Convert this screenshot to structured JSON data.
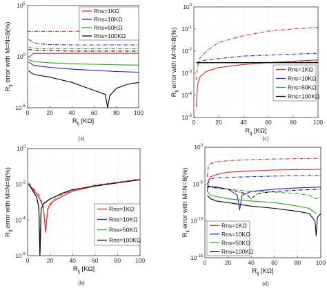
{
  "panels": [
    {
      "caption": "(a)",
      "xlabel_main": "R",
      "xlabel_sub": "ij",
      "xlabel_unit": " [KΩ]",
      "ylabel_main": "R",
      "ylabel_sub": "ij",
      "ylabel_rest": " error with M=N=8(%)",
      "legend": [
        "Rns=1KΩ",
        "Rns=10KΩ",
        "Rns=50KΩ",
        "Rns=100KΩ"
      ],
      "xticks": [
        "0",
        "20",
        "40",
        "60",
        "80",
        "100"
      ],
      "yticks": [
        {
          "b": "10",
          "e": "5"
        },
        {
          "b": "10",
          "e": "0"
        },
        {
          "b": "10",
          "e": "-5"
        }
      ]
    },
    {
      "caption": "(c)",
      "xlabel_main": "R",
      "xlabel_sub": "ij",
      "xlabel_unit": " [KΩ]",
      "ylabel_main": "R",
      "ylabel_sub": "ij",
      "ylabel_rest": " error with M=N=8(%)",
      "legend": [
        "Rns=1KΩ",
        "Rns=10KΩ",
        "Rns=50KΩ",
        "Rns=100KΩ"
      ],
      "xticks": [
        "0",
        "20",
        "40",
        "60",
        "80",
        "100"
      ],
      "yticks": [
        {
          "b": "10",
          "e": "0"
        },
        {
          "b": "10",
          "e": "-1"
        },
        {
          "b": "10",
          "e": "-2"
        },
        {
          "b": "10",
          "e": "-3"
        },
        {
          "b": "10",
          "e": "-4"
        },
        {
          "b": "10",
          "e": "-5"
        }
      ]
    },
    {
      "caption": "(b)",
      "xlabel_main": "R",
      "xlabel_sub": "ij",
      "xlabel_unit": " [KΩ]",
      "ylabel_main": "R",
      "ylabel_sub": "ij",
      "ylabel_rest": " error with M=N=8(%)",
      "legend": [
        "Rns=1KΩ",
        "Rns=10KΩ",
        "Rns=50KΩ",
        "Rns=100KΩ"
      ],
      "xticks": [
        "0",
        "20",
        "40",
        "60",
        "80",
        "100"
      ],
      "yticks": [
        {
          "b": "10",
          "e": "0"
        },
        {
          "b": "10",
          "e": "-2"
        },
        {
          "b": "10",
          "e": "-4"
        },
        {
          "b": "10",
          "e": "-6"
        }
      ]
    },
    {
      "caption": "(d)",
      "xlabel_main": "R",
      "xlabel_sub": "ij",
      "xlabel_unit": " [KΩ]",
      "ylabel_main": "R",
      "ylabel_sub": "ij",
      "ylabel_rest": " error with M=N=8(%)",
      "legend": [
        "Rns=1KΩ",
        "Rns=10KΩ",
        "Rns=50KΩ",
        "Rns=100KΩ"
      ],
      "xticks": [
        "0",
        "20",
        "40",
        "60",
        "80",
        "100"
      ],
      "yticks": [
        {
          "b": "10",
          "e": "0"
        },
        {
          "b": "10",
          "e": "-5"
        },
        {
          "b": "10",
          "e": "-10"
        },
        {
          "b": "10",
          "e": "-15"
        }
      ]
    }
  ],
  "chart_data": [
    {
      "panel": "(a)",
      "type": "line",
      "xscale": "linear",
      "yscale": "log",
      "xlim": [
        0,
        100
      ],
      "ylim_exp": [
        -5,
        5
      ],
      "grid": true,
      "legend_position": "top-right",
      "series": [
        {
          "name": "Rns=1KΩ",
          "color": "#d62728",
          "style": "solid",
          "x": [
            1,
            5,
            10,
            20,
            40,
            60,
            80,
            100
          ],
          "y": [
            0.8,
            2.0,
            2.1,
            2.1,
            2.1,
            2.1,
            2.1,
            2.1
          ]
        },
        {
          "name": "Rns=10KΩ",
          "color": "#1f1fbf",
          "style": "solid",
          "x": [
            1,
            5,
            10,
            20,
            40,
            60,
            80,
            100
          ],
          "y": [
            0.3,
            0.15,
            0.12,
            0.09,
            0.06,
            0.045,
            0.035,
            0.03
          ]
        },
        {
          "name": "Rns=50KΩ",
          "color": "#2ca02c",
          "style": "solid",
          "x": [
            1,
            5,
            10,
            20,
            40,
            60,
            80,
            100
          ],
          "y": [
            0.5,
            0.35,
            0.3,
            0.25,
            0.2,
            0.18,
            0.16,
            0.15
          ]
        },
        {
          "name": "Rns=100KΩ",
          "color": "#000000",
          "style": "solid",
          "x": [
            1,
            5,
            10,
            20,
            40,
            60,
            70,
            72,
            74,
            80,
            90,
            100
          ],
          "y": [
            0.04,
            0.02,
            0.015,
            0.01,
            0.003,
            0.0005,
            0.0002,
            1e-05,
            0.00015,
            0.0008,
            0.002,
            0.003
          ]
        },
        {
          "name": "Rns=1KΩ",
          "color": "#d62728",
          "style": "dashdot",
          "x": [
            0,
            100
          ],
          "y": [
            300,
            300
          ]
        },
        {
          "name": "Rns=10KΩ",
          "color": "#1f1fbf",
          "style": "dashdot",
          "x": [
            1,
            5,
            10,
            20,
            40,
            60,
            80,
            100
          ],
          "y": [
            50,
            25,
            18,
            15,
            14,
            14,
            14,
            14
          ]
        },
        {
          "name": "Rns=50KΩ",
          "color": "#2ca02c",
          "style": "dashdot",
          "x": [
            1,
            10,
            40,
            100
          ],
          "y": [
            8,
            6,
            6,
            6
          ]
        },
        {
          "name": "Rns=100KΩ",
          "color": "#000000",
          "style": "dashdot",
          "x": [
            1,
            10,
            40,
            100
          ],
          "y": [
            5,
            4,
            3.5,
            3.5
          ]
        }
      ]
    },
    {
      "panel": "(c)",
      "type": "line",
      "xscale": "linear",
      "yscale": "log",
      "xlim": [
        0,
        100
      ],
      "ylim_exp": [
        -5,
        0
      ],
      "grid": true,
      "legend_position": "bottom-right",
      "series": [
        {
          "name": "Rns=1KΩ",
          "color": "#d62728",
          "style": "solid",
          "x": [
            2,
            3,
            5,
            10,
            20,
            40,
            60,
            80,
            100
          ],
          "y": [
            3e-05,
            0.0003,
            0.0007,
            0.0012,
            0.0018,
            0.0025,
            0.003,
            0.0035,
            0.004
          ]
        },
        {
          "name": "Rns=10KΩ",
          "color": "#1f1fbf",
          "style": "solid",
          "x": [
            2,
            100
          ],
          "y": [
            0.003,
            0.003
          ]
        },
        {
          "name": "Rns=50KΩ",
          "color": "#2ca02c",
          "style": "solid",
          "x": [
            2,
            100
          ],
          "y": [
            0.003,
            0.003
          ]
        },
        {
          "name": "Rns=100KΩ",
          "color": "#000000",
          "style": "solid",
          "x": [
            2,
            100
          ],
          "y": [
            0.003,
            0.003
          ]
        },
        {
          "name": "Rns=1KΩ",
          "color": "#d62728",
          "style": "dashdot",
          "x": [
            2,
            3,
            5,
            10,
            20,
            40,
            60,
            80,
            100
          ],
          "y": [
            0.0005,
            0.002,
            0.005,
            0.01,
            0.025,
            0.05,
            0.08,
            0.1,
            0.12
          ]
        },
        {
          "name": "Rns=10KΩ",
          "color": "#1f1fbf",
          "style": "dashdot",
          "x": [
            2,
            10,
            40,
            100
          ],
          "y": [
            0.003,
            0.004,
            0.006,
            0.008
          ]
        },
        {
          "name": "Rns=50KΩ",
          "color": "#2ca02c",
          "style": "dashdot",
          "x": [
            2,
            100
          ],
          "y": [
            0.003,
            0.0032
          ]
        },
        {
          "name": "Rns=100KΩ",
          "color": "#000000",
          "style": "dashdot",
          "x": [
            2,
            100
          ],
          "y": [
            0.003,
            0.0031
          ]
        }
      ]
    },
    {
      "panel": "(b)",
      "type": "line",
      "xscale": "linear",
      "yscale": "log",
      "xlim": [
        0,
        100
      ],
      "ylim_exp": [
        -6,
        0
      ],
      "grid": true,
      "legend_position": "bottom-right",
      "series": [
        {
          "name": "Rns=1KΩ",
          "color": "#d62728",
          "style": "solid",
          "x": [
            1,
            5,
            10,
            14,
            16,
            18,
            22,
            30,
            40,
            60,
            80,
            100
          ],
          "y": [
            0.01,
            0.005,
            0.002,
            0.0005,
            2e-05,
            0.0004,
            0.001,
            0.002,
            0.004,
            0.008,
            0.012,
            0.018
          ]
        },
        {
          "name": "Rns=10KΩ",
          "color": "#1f1fbf",
          "style": "solid",
          "x": [
            1,
            5,
            8,
            10,
            11,
            12,
            14,
            20,
            30,
            40,
            60,
            80,
            100
          ],
          "y": [
            0.01,
            0.004,
            0.002,
            0.0005,
            1e-06,
            0.0004,
            0.0008,
            0.0015,
            0.003,
            0.005,
            0.008,
            0.012,
            0.018
          ]
        },
        {
          "name": "Rns=50KΩ",
          "color": "#2ca02c",
          "style": "solid",
          "x": [
            1,
            5,
            8,
            10,
            11,
            12,
            14,
            20,
            30,
            40,
            60,
            80,
            100
          ],
          "y": [
            0.01,
            0.004,
            0.002,
            0.0005,
            1e-06,
            0.0004,
            0.0008,
            0.0015,
            0.003,
            0.005,
            0.008,
            0.012,
            0.018
          ]
        },
        {
          "name": "Rns=100KΩ",
          "color": "#000000",
          "style": "solid",
          "x": [
            1,
            5,
            8,
            10,
            11,
            12,
            14,
            20,
            30,
            40,
            60,
            80,
            100
          ],
          "y": [
            0.01,
            0.004,
            0.002,
            0.0005,
            1e-06,
            0.0004,
            0.0008,
            0.0015,
            0.003,
            0.005,
            0.008,
            0.012,
            0.018
          ]
        },
        {
          "name": "Rns=1KΩ",
          "color": "#d62728",
          "style": "dashdot",
          "x": [
            1,
            5,
            10,
            14,
            16,
            18,
            22,
            30,
            40,
            60,
            80,
            100
          ],
          "y": [
            0.012,
            0.006,
            0.0025,
            0.0006,
            3e-05,
            0.0005,
            0.0012,
            0.0025,
            0.0045,
            0.009,
            0.013,
            0.02
          ]
        }
      ]
    },
    {
      "panel": "(d)",
      "type": "line",
      "xscale": "linear",
      "yscale": "log",
      "xlim": [
        0,
        100
      ],
      "ylim_exp": [
        -15,
        0
      ],
      "grid": true,
      "legend_position": "bottom-left",
      "series": [
        {
          "name": "Rns=1KΩ",
          "color": "#d62728",
          "style": "solid",
          "x": [
            2,
            3,
            5,
            10,
            20,
            40,
            60,
            80,
            100
          ],
          "y": [
            1e-06,
            3e-05,
            0.0001,
            0.0002,
            0.0004,
            0.0006,
            0.0008,
            0.0009,
            0.001
          ]
        },
        {
          "name": "Rns=10KΩ",
          "color": "#1f1fbf",
          "style": "solid",
          "x": [
            2,
            5,
            10,
            20,
            28,
            30,
            32,
            40,
            60,
            80,
            100
          ],
          "y": [
            3e-06,
            5e-06,
            4e-06,
            2e-06,
            3e-07,
            3e-09,
            3e-07,
            1e-06,
            2e-06,
            3e-06,
            4e-06
          ]
        },
        {
          "name": "Rns=50KΩ",
          "color": "#2ca02c",
          "style": "solid",
          "x": [
            2,
            5,
            10,
            20,
            40,
            60,
            80,
            90,
            96
          ],
          "y": [
            1e-06,
            3e-07,
            2e-07,
            1e-07,
            5e-08,
            3e-08,
            1e-08,
            5e-09,
            1e-09
          ]
        },
        {
          "name": "Rns=100KΩ",
          "color": "#000000",
          "style": "solid",
          "x": [
            2,
            5,
            10,
            20,
            40,
            60,
            80,
            90,
            95,
            96,
            97,
            100
          ],
          "y": [
            3e-07,
            1e-07,
            5e-08,
            3e-08,
            1e-08,
            5e-09,
            2e-09,
            1e-09,
            1e-10,
            1e-12,
            3e-10,
            1e-09
          ]
        },
        {
          "name": "Rns=1KΩ",
          "color": "#d62728",
          "style": "dashdot",
          "x": [
            2,
            3,
            5,
            10,
            20,
            40,
            60,
            80,
            100
          ],
          "y": [
            0.0001,
            0.003,
            0.006,
            0.01,
            0.015,
            0.02,
            0.025,
            0.028,
            0.03
          ]
        },
        {
          "name": "Rns=10KΩ",
          "color": "#1f1fbf",
          "style": "dashdot",
          "x": [
            2,
            5,
            10,
            20,
            40,
            60,
            80,
            100
          ],
          "y": [
            1e-05,
            5e-05,
            7e-05,
            8e-05,
            0.0001,
            0.00012,
            0.00014,
            0.00015
          ]
        },
        {
          "name": "Rns=50KΩ",
          "color": "#2ca02c",
          "style": "dashdot",
          "x": [
            2,
            5,
            10,
            20,
            40,
            60,
            80,
            90,
            96,
            100
          ],
          "y": [
            1e-05,
            3e-06,
            3e-06,
            2e-06,
            1e-06,
            8e-07,
            5e-07,
            3e-07,
            1e-07,
            2e-07
          ]
        },
        {
          "name": "Rns=100KΩ",
          "color": "#000000",
          "style": "dashdot",
          "x": [
            2,
            5,
            10,
            20,
            35,
            40,
            45,
            60,
            80,
            100
          ],
          "y": [
            5e-06,
            4e-06,
            3e-06,
            2e-06,
            5e-07,
            1e-07,
            5e-07,
            1e-06,
            1.5e-06,
            2e-06
          ]
        }
      ]
    }
  ]
}
